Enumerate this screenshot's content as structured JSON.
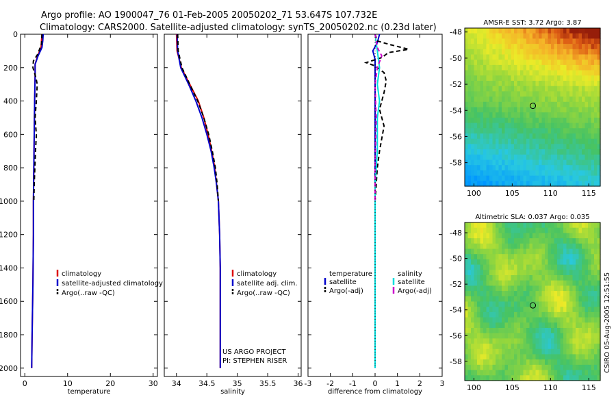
{
  "header": {
    "line1": "Argo profile: AO 1900047_76 01-Feb-2005 20050202_71 53.647S 107.732E",
    "line2": "Climatology: CARS2000. Satellite-adjusted climatology: synTS_20050202.nc (0.23d later)"
  },
  "side_stamp": "CSIRO 05-Aug-2005 12:51:55",
  "colors": {
    "climatology": "#dd0000",
    "satellite": "#0000cc",
    "argo": "#000000",
    "salinity_sat": "#00dddd",
    "salinity_argo": "#cc00cc"
  },
  "chart_data": [
    {
      "type": "line",
      "name": "temperature-profile",
      "xlabel": "temperature",
      "ylabel": "",
      "xlim": [
        -1,
        31
      ],
      "ylim": [
        2050,
        0
      ],
      "xticks": [
        0,
        10,
        20,
        30
      ],
      "yticks": [
        0,
        200,
        400,
        600,
        800,
        1000,
        1200,
        1400,
        1600,
        1800,
        2000
      ],
      "legend": [
        "climatology",
        "satellite-adjusted climatology",
        "Argo(..raw -QC)"
      ],
      "series": [
        {
          "name": "climatology",
          "style": "solid",
          "color": "#dd0000",
          "points": [
            [
              4.0,
              0
            ],
            [
              3.9,
              40
            ],
            [
              3.8,
              80
            ],
            [
              3.0,
              130
            ],
            [
              2.4,
              180
            ],
            [
              2.4,
              250
            ],
            [
              2.3,
              400
            ],
            [
              2.2,
              600
            ],
            [
              2.1,
              800
            ],
            [
              2.0,
              1000
            ],
            [
              2.0,
              1200
            ],
            [
              1.9,
              1500
            ],
            [
              1.7,
              1800
            ],
            [
              1.6,
              2000
            ]
          ]
        },
        {
          "name": "satellite",
          "style": "solid",
          "color": "#0000cc",
          "points": [
            [
              4.3,
              0
            ],
            [
              4.2,
              40
            ],
            [
              4.0,
              80
            ],
            [
              3.1,
              130
            ],
            [
              2.4,
              180
            ],
            [
              2.4,
              250
            ],
            [
              2.3,
              400
            ],
            [
              2.2,
              600
            ],
            [
              2.1,
              800
            ],
            [
              2.0,
              1000
            ],
            [
              2.0,
              1200
            ],
            [
              1.9,
              1500
            ],
            [
              1.7,
              1800
            ],
            [
              1.6,
              2000
            ]
          ]
        },
        {
          "name": "argo",
          "style": "dashed",
          "color": "#000000",
          "points": [
            [
              4.0,
              0
            ],
            [
              3.9,
              60
            ],
            [
              3.0,
              120
            ],
            [
              2.0,
              160
            ],
            [
              1.9,
              200
            ],
            [
              2.6,
              260
            ],
            [
              2.9,
              300
            ],
            [
              2.7,
              400
            ],
            [
              2.4,
              500
            ],
            [
              2.7,
              600
            ],
            [
              2.5,
              700
            ],
            [
              2.2,
              900
            ],
            [
              2.1,
              1000
            ]
          ]
        }
      ]
    },
    {
      "type": "line",
      "name": "salinity-profile",
      "xlabel": "salinity",
      "ylabel": "",
      "xlim": [
        33.8,
        36.05
      ],
      "ylim": [
        2050,
        0
      ],
      "xticks": [
        34,
        34.5,
        35,
        35.5,
        36
      ],
      "yticks": [
        0,
        200,
        400,
        600,
        800,
        1000,
        1200,
        1400,
        1600,
        1800,
        2000
      ],
      "legend": [
        "climatology",
        "satellite adj. clim.",
        "Argo(..raw -QC)"
      ],
      "annotations": [
        "US ARGO PROJECT",
        "PI: STEPHEN RISER"
      ],
      "series": [
        {
          "name": "climatology",
          "style": "solid",
          "color": "#dd0000",
          "points": [
            [
              34.0,
              0
            ],
            [
              34.01,
              100
            ],
            [
              34.08,
              200
            ],
            [
              34.22,
              300
            ],
            [
              34.36,
              400
            ],
            [
              34.45,
              500
            ],
            [
              34.52,
              600
            ],
            [
              34.58,
              700
            ],
            [
              34.63,
              800
            ],
            [
              34.66,
              900
            ],
            [
              34.69,
              1000
            ],
            [
              34.7,
              1100
            ],
            [
              34.71,
              1200
            ],
            [
              34.72,
              1400
            ],
            [
              34.72,
              1600
            ],
            [
              34.72,
              1800
            ],
            [
              34.72,
              2000
            ]
          ]
        },
        {
          "name": "satellite",
          "style": "solid",
          "color": "#0000cc",
          "points": [
            [
              34.01,
              0
            ],
            [
              34.02,
              100
            ],
            [
              34.07,
              200
            ],
            [
              34.2,
              300
            ],
            [
              34.32,
              400
            ],
            [
              34.42,
              500
            ],
            [
              34.5,
              600
            ],
            [
              34.57,
              700
            ],
            [
              34.62,
              800
            ],
            [
              34.66,
              900
            ],
            [
              34.69,
              1000
            ],
            [
              34.7,
              1100
            ],
            [
              34.71,
              1200
            ],
            [
              34.72,
              1400
            ],
            [
              34.72,
              1600
            ],
            [
              34.72,
              1800
            ],
            [
              34.72,
              2000
            ]
          ]
        },
        {
          "name": "argo",
          "style": "dashed",
          "color": "#000000",
          "points": [
            [
              34.02,
              0
            ],
            [
              34.03,
              100
            ],
            [
              34.09,
              200
            ],
            [
              34.22,
              300
            ],
            [
              34.35,
              400
            ],
            [
              34.45,
              500
            ],
            [
              34.53,
              600
            ],
            [
              34.59,
              700
            ],
            [
              34.64,
              800
            ],
            [
              34.67,
              900
            ],
            [
              34.69,
              1000
            ]
          ]
        }
      ]
    },
    {
      "type": "line",
      "name": "difference-profile",
      "xlabel": "difference from climatology",
      "ylabel": "",
      "xlim": [
        -3,
        3
      ],
      "ylim": [
        2050,
        0
      ],
      "xticks": [
        -3,
        -2,
        -1,
        0,
        1,
        2,
        3
      ],
      "yticks": [
        0,
        200,
        400,
        600,
        800,
        1000,
        1200,
        1400,
        1600,
        1800,
        2000
      ],
      "legend_left_title": "temperature",
      "legend_left": [
        "satellite",
        "Argo(-adj)"
      ],
      "legend_right_title": "salinity",
      "legend_right": [
        "satellite",
        "Argo(-adj)"
      ],
      "series": [
        {
          "name": "temp-satellite",
          "style": "solid",
          "color": "#0000cc",
          "points": [
            [
              0.2,
              0
            ],
            [
              0.1,
              50
            ],
            [
              -0.1,
              100
            ],
            [
              0.0,
              150
            ],
            [
              0.0,
              300
            ],
            [
              0.0,
              1000
            ],
            [
              0.0,
              2000
            ]
          ]
        },
        {
          "name": "temp-argo",
          "style": "dashed",
          "color": "#000000",
          "points": [
            [
              0.0,
              0
            ],
            [
              0.1,
              40
            ],
            [
              0.6,
              60
            ],
            [
              1.5,
              90
            ],
            [
              0.6,
              110
            ],
            [
              0.3,
              140
            ],
            [
              -0.4,
              170
            ],
            [
              0.0,
              190
            ],
            [
              0.4,
              230
            ],
            [
              0.5,
              280
            ],
            [
              0.4,
              350
            ],
            [
              0.2,
              450
            ],
            [
              0.4,
              550
            ],
            [
              0.2,
              700
            ],
            [
              0.1,
              800
            ],
            [
              0.0,
              1000
            ]
          ]
        },
        {
          "name": "sal-satellite",
          "style": "solid",
          "color": "#00dddd",
          "points": [
            [
              0.0,
              0
            ],
            [
              0.1,
              100
            ],
            [
              0.2,
              200
            ],
            [
              0.1,
              300
            ],
            [
              0.2,
              400
            ],
            [
              0.1,
              500
            ],
            [
              0.1,
              700
            ],
            [
              0.0,
              900
            ],
            [
              0.0,
              1100
            ],
            [
              0.0,
              1200
            ],
            [
              0.0,
              1500
            ],
            [
              0.0,
              2000
            ]
          ]
        },
        {
          "name": "sal-argo",
          "style": "dashed",
          "color": "#cc00cc",
          "points": [
            [
              0.0,
              0
            ],
            [
              0.1,
              80
            ],
            [
              0.3,
              130
            ],
            [
              0.1,
              200
            ],
            [
              0.0,
              300
            ],
            [
              0.05,
              500
            ],
            [
              0.0,
              800
            ],
            [
              0.0,
              1000
            ]
          ]
        }
      ]
    },
    {
      "type": "heatmap",
      "name": "sst-map",
      "title": "AMSR-E SST: 3.72 Argo: 3.87",
      "xlim": [
        98.8,
        116.5
      ],
      "ylim": [
        -59.8,
        -47.7
      ],
      "xticks": [
        100,
        105,
        110,
        115
      ],
      "yticks": [
        -48,
        -50,
        -52,
        -54,
        -56,
        -58
      ],
      "marker": {
        "lon": 107.7,
        "lat": -53.65
      }
    },
    {
      "type": "heatmap",
      "name": "sla-map",
      "title": "Altimetric SLA: 0.037 Argo: 0.035",
      "xlim": [
        98.8,
        116.5
      ],
      "ylim": [
        -59.5,
        -47.2
      ],
      "xticks": [
        100,
        105,
        110,
        115
      ],
      "yticks": [
        -48,
        -50,
        -52,
        -54,
        -56,
        -58
      ],
      "marker": {
        "lon": 107.7,
        "lat": -53.65
      }
    }
  ]
}
